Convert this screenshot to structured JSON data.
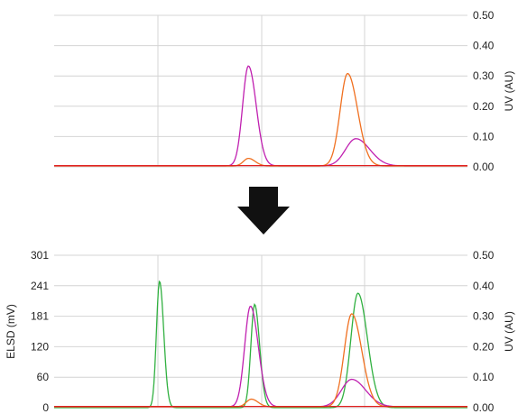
{
  "chart_data": [
    {
      "type": "line",
      "title": "",
      "xlabel": "",
      "ylabel_right": "UV (AU)",
      "y_right_ticks": [
        "0.00",
        "0.10",
        "0.20",
        "0.30",
        "0.40",
        "0.50"
      ],
      "ylim_right": [
        0,
        0.5
      ],
      "xlim": [
        0,
        100
      ],
      "grid": "vertical lines + horizontal lines at ticks",
      "series": [
        {
          "color": "#c020b0",
          "peaks": [
            {
              "x": 47,
              "height": 0.33,
              "width": 1.4
            },
            {
              "x": 73,
              "height": 0.09,
              "width": 2.5
            }
          ],
          "baseline": 0.003
        },
        {
          "color": "#f07020",
          "peaks": [
            {
              "x": 47,
              "height": 0.025,
              "width": 1.2
            },
            {
              "x": 71,
              "height": 0.305,
              "width": 1.8
            }
          ],
          "baseline": 0.003
        },
        {
          "color": "#e02020",
          "peaks": [],
          "baseline": 0.004
        }
      ]
    },
    {
      "type": "line",
      "title": "",
      "xlabel": "",
      "ylabel_left": "ELSD (mV)",
      "ylabel_right": "UV (AU)",
      "y_left_ticks": [
        "0",
        "60",
        "120",
        "181",
        "241",
        "301"
      ],
      "y_right_ticks": [
        "0.00",
        "0.10",
        "0.20",
        "0.30",
        "0.40",
        "0.50"
      ],
      "ylim_left": [
        0,
        301
      ],
      "ylim_right": [
        0,
        0.5
      ],
      "xlim": [
        0,
        100
      ],
      "grid": "vertical lines + horizontal lines at ticks",
      "series": [
        {
          "color": "#30b040",
          "axis": "left",
          "peaks": [
            {
              "x": 25.5,
              "height": 250,
              "width": 0.75
            },
            {
              "x": 48.5,
              "height": 204,
              "width": 0.9
            },
            {
              "x": 73.5,
              "height": 226,
              "width": 1.7
            }
          ],
          "baseline": 0
        },
        {
          "color": "#c020b0",
          "axis": "right",
          "peaks": [
            {
              "x": 47.5,
              "height": 0.33,
              "width": 1.4
            },
            {
              "x": 72,
              "height": 0.09,
              "width": 2.5
            }
          ],
          "baseline": 0.003
        },
        {
          "color": "#f07020",
          "axis": "right",
          "peaks": [
            {
              "x": 47.7,
              "height": 0.025,
              "width": 1.2
            },
            {
              "x": 72,
              "height": 0.305,
              "width": 1.8
            }
          ],
          "baseline": 0.003
        },
        {
          "color": "#e02020",
          "axis": "right",
          "peaks": [],
          "baseline": 0.004
        }
      ]
    }
  ],
  "arrow": {
    "name": "down-arrow-icon",
    "color": "#111111"
  }
}
